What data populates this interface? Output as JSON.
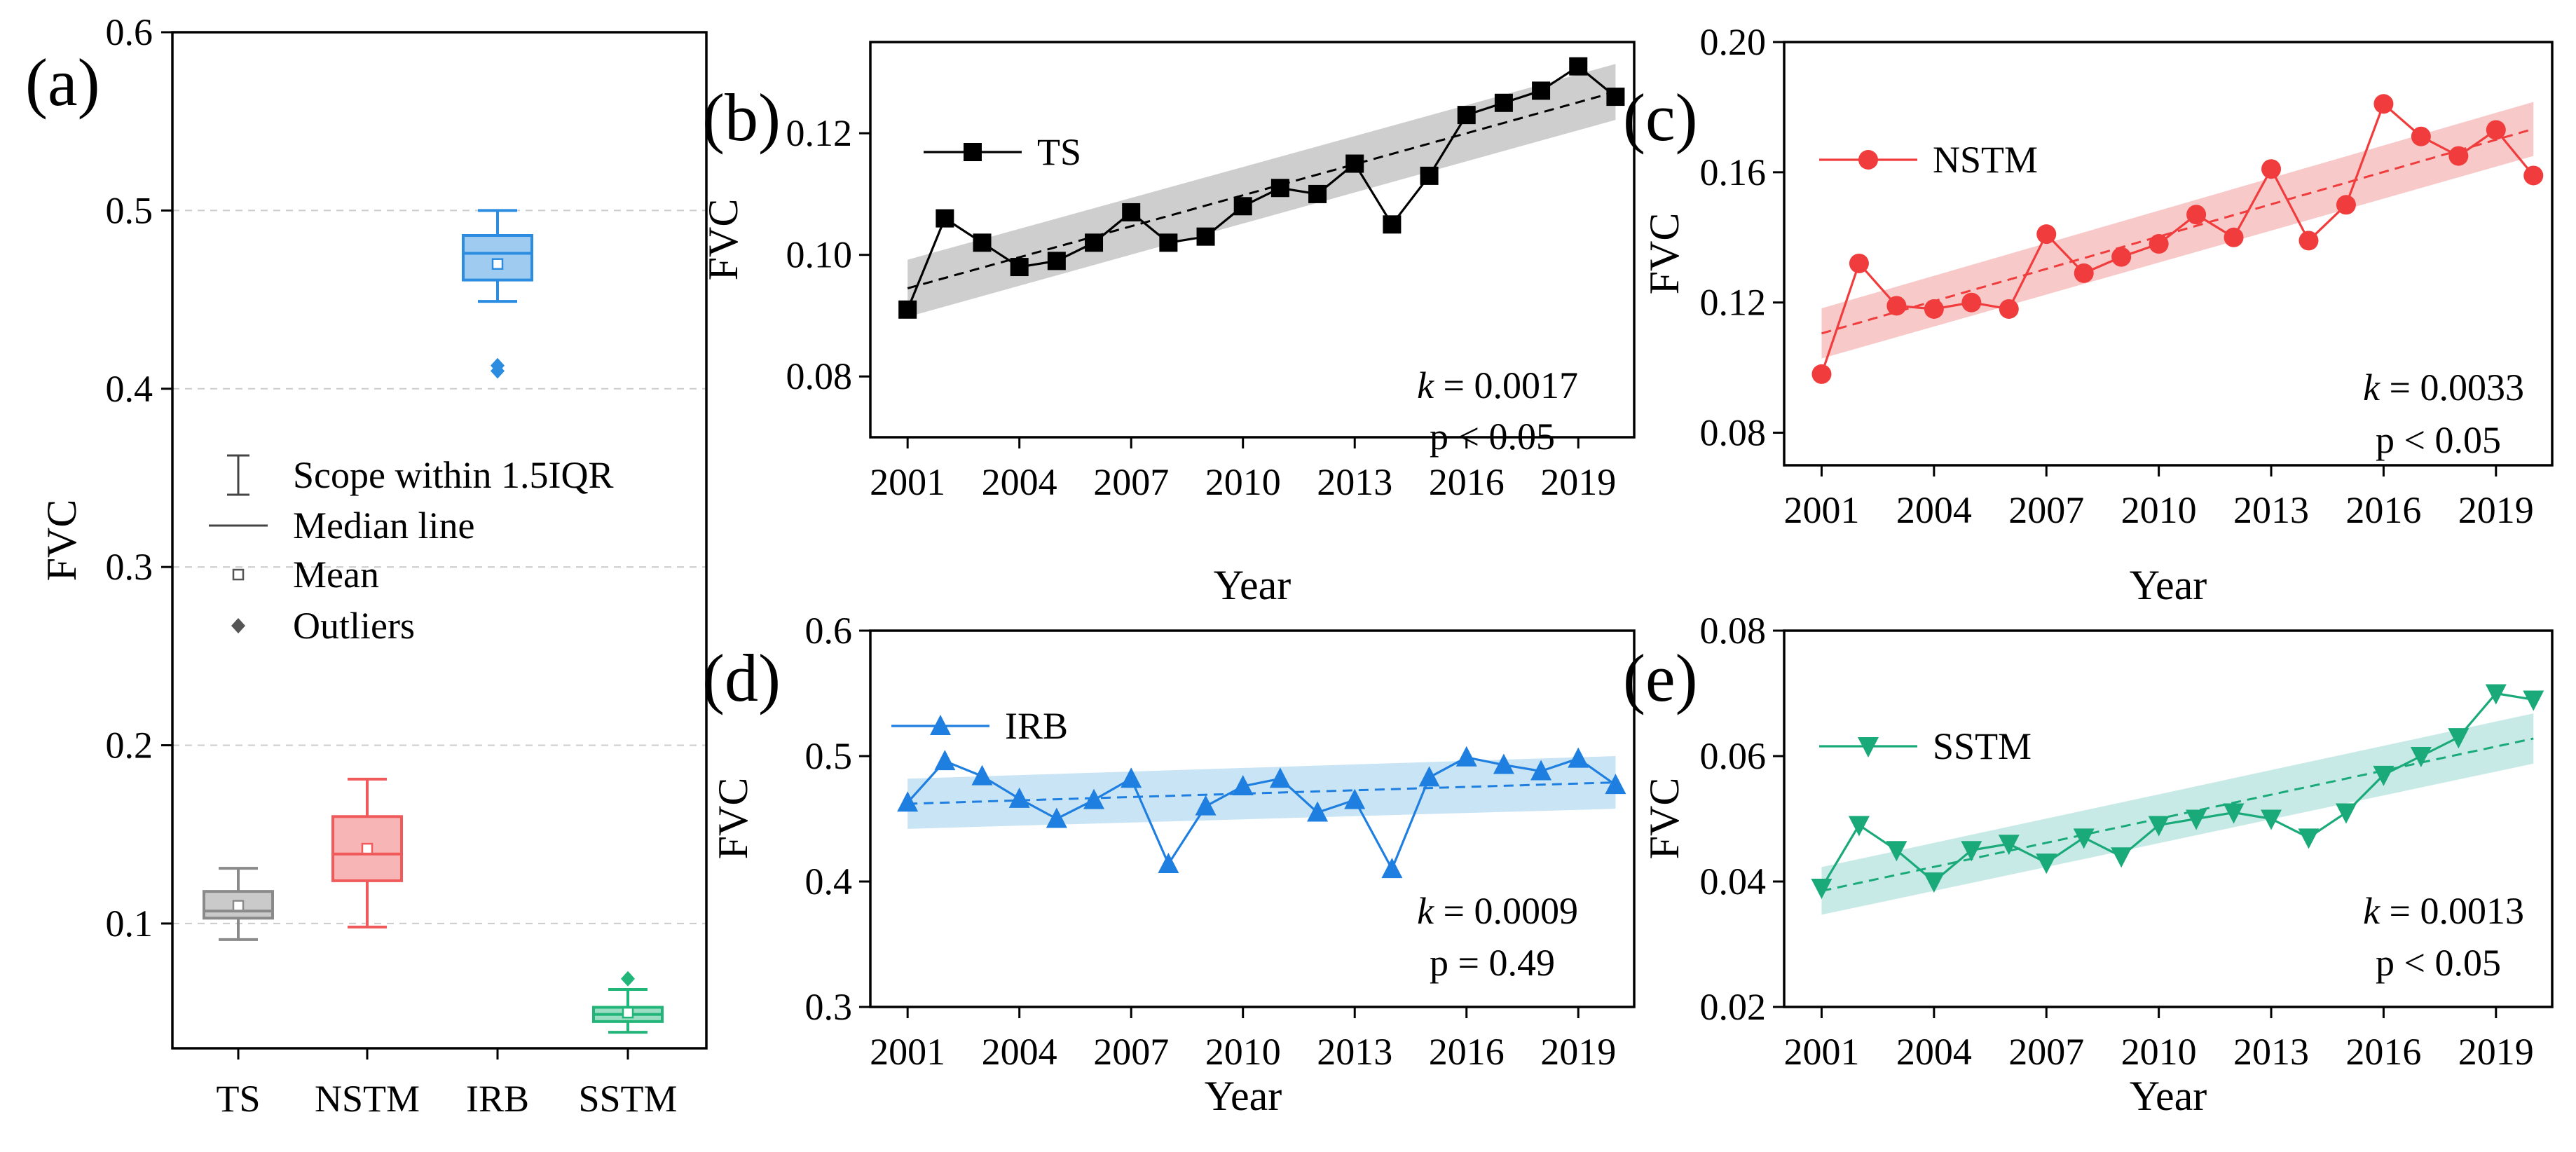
{
  "chart_data": [
    {
      "panel": "(a)",
      "type": "box",
      "categories": [
        "TS",
        "NSTM",
        "IRB",
        "SSTM"
      ],
      "ylabel": "FVC",
      "ylim": [
        0.03,
        0.6
      ],
      "yticks": [
        0.1,
        0.2,
        0.3,
        0.4,
        0.5,
        0.6
      ],
      "grid": true,
      "colors": [
        "#8a8a8a",
        "#f05a5a",
        "#2b8ce0",
        "#21b57a"
      ],
      "boxes": [
        {
          "whisker_low": 0.091,
          "q1": 0.103,
          "median": 0.107,
          "q3": 0.118,
          "whisker_high": 0.131,
          "mean": 0.11,
          "outliers": []
        },
        {
          "whisker_low": 0.098,
          "q1": 0.124,
          "median": 0.139,
          "q3": 0.16,
          "whisker_high": 0.181,
          "mean": 0.142,
          "outliers": []
        },
        {
          "whisker_low": 0.449,
          "q1": 0.461,
          "median": 0.476,
          "q3": 0.486,
          "whisker_high": 0.5,
          "mean": 0.47,
          "outliers": [
            0.41,
            0.413
          ]
        },
        {
          "whisker_low": 0.039,
          "q1": 0.045,
          "median": 0.049,
          "q3": 0.053,
          "whisker_high": 0.063,
          "mean": 0.05,
          "outliers": [
            0.069
          ]
        }
      ],
      "legend": [
        "Scope within 1.5IQR",
        "Median line",
        "Mean",
        "Outliers"
      ]
    },
    {
      "panel": "(b)",
      "type": "line",
      "series_name": "TS",
      "color": "#000000",
      "band_color": "#bdbdbd",
      "marker": "square",
      "x": [
        2001,
        2002,
        2003,
        2004,
        2005,
        2006,
        2007,
        2008,
        2009,
        2010,
        2011,
        2012,
        2013,
        2014,
        2015,
        2016,
        2017,
        2018,
        2019,
        2020
      ],
      "y": [
        0.091,
        0.106,
        0.102,
        0.098,
        0.099,
        0.102,
        0.107,
        0.102,
        0.103,
        0.108,
        0.111,
        0.11,
        0.115,
        0.105,
        0.113,
        0.123,
        0.125,
        0.127,
        0.131,
        0.126
      ],
      "fit": {
        "y_start": 0.0945,
        "y_end": 0.1268,
        "band_start": [
          0.0898,
          0.0992
        ],
        "band_end": [
          0.1222,
          0.1314
        ]
      },
      "xlabel": "Year",
      "ylabel": "FVC",
      "xlim": [
        2000,
        2020.5
      ],
      "ylim": [
        0.07,
        0.135
      ],
      "xticks": [
        2001,
        2004,
        2007,
        2010,
        2013,
        2016,
        2019
      ],
      "yticks": [
        0.08,
        0.1,
        0.12
      ],
      "ytick_labels": [
        "0.08",
        "0.10",
        "0.12"
      ],
      "annot_k": " = 0.0017",
      "annot_p": "p < 0.05"
    },
    {
      "panel": "(c)",
      "type": "line",
      "series_name": "NSTM",
      "color": "#f03c3c",
      "band_color": "#f5b7b7",
      "marker": "circle",
      "x": [
        2001,
        2002,
        2003,
        2004,
        2005,
        2006,
        2007,
        2008,
        2009,
        2010,
        2011,
        2012,
        2013,
        2014,
        2015,
        2016,
        2017,
        2018,
        2019,
        2020
      ],
      "y": [
        0.098,
        0.132,
        0.119,
        0.118,
        0.12,
        0.118,
        0.141,
        0.129,
        0.134,
        0.138,
        0.147,
        0.14,
        0.161,
        0.139,
        0.15,
        0.181,
        0.171,
        0.165,
        0.173,
        0.159
      ],
      "fit": {
        "y_start": 0.1105,
        "y_end": 0.1733,
        "band_start": [
          0.1028,
          0.1182
        ],
        "band_end": [
          0.165,
          0.1816
        ]
      },
      "xlabel": "Year",
      "ylabel": "FVC",
      "xlim": [
        2000,
        2020.5
      ],
      "ylim": [
        0.07,
        0.2
      ],
      "xticks": [
        2001,
        2004,
        2007,
        2010,
        2013,
        2016,
        2019
      ],
      "yticks": [
        0.08,
        0.12,
        0.16,
        0.2
      ],
      "ytick_labels": [
        "0.08",
        "0.12",
        "0.16",
        "0.20"
      ],
      "annot_k": " = 0.0033",
      "annot_p": "p < 0.05"
    },
    {
      "panel": "(d)",
      "type": "line",
      "series_name": "IRB",
      "color": "#1f7fe0",
      "band_color": "#b7dbf0",
      "marker": "triangle-up",
      "x": [
        2001,
        2002,
        2003,
        2004,
        2005,
        2006,
        2007,
        2008,
        2009,
        2010,
        2011,
        2012,
        2013,
        2014,
        2015,
        2016,
        2017,
        2018,
        2019,
        2020
      ],
      "y": [
        0.463,
        0.496,
        0.484,
        0.466,
        0.45,
        0.465,
        0.482,
        0.414,
        0.46,
        0.476,
        0.482,
        0.455,
        0.465,
        0.41,
        0.483,
        0.499,
        0.493,
        0.488,
        0.498,
        0.477
      ],
      "fit": {
        "y_start": 0.462,
        "y_end": 0.479,
        "band_start": [
          0.442,
          0.482
        ],
        "band_end": [
          0.458,
          0.5
        ]
      },
      "xlabel": "Year",
      "ylabel": "FVC",
      "xlim": [
        2000,
        2020.5
      ],
      "ylim": [
        0.3,
        0.6
      ],
      "xticks": [
        2001,
        2004,
        2007,
        2010,
        2013,
        2016,
        2019
      ],
      "yticks": [
        0.3,
        0.4,
        0.5,
        0.6
      ],
      "ytick_labels": [
        "0.3",
        "0.4",
        "0.5",
        "0.6"
      ],
      "annot_k": " = 0.0009",
      "annot_p": "p = 0.49"
    },
    {
      "panel": "(e)",
      "type": "line",
      "series_name": "SSTM",
      "color": "#1aaa7a",
      "band_color": "#b5e3de",
      "marker": "triangle-down",
      "x": [
        2001,
        2002,
        2003,
        2004,
        2005,
        2006,
        2007,
        2008,
        2009,
        2010,
        2011,
        2012,
        2013,
        2014,
        2015,
        2016,
        2017,
        2018,
        2019,
        2020
      ],
      "y": [
        0.039,
        0.049,
        0.045,
        0.04,
        0.045,
        0.046,
        0.043,
        0.047,
        0.044,
        0.049,
        0.05,
        0.051,
        0.05,
        0.047,
        0.051,
        0.057,
        0.06,
        0.063,
        0.07,
        0.069
      ],
      "fit": {
        "y_start": 0.0385,
        "y_end": 0.0628,
        "band_start": [
          0.0347,
          0.0423
        ],
        "band_end": [
          0.0588,
          0.0668
        ]
      },
      "xlabel": "Year",
      "ylabel": "FVC",
      "xlim": [
        2000,
        2020.5
      ],
      "ylim": [
        0.02,
        0.08
      ],
      "xticks": [
        2001,
        2004,
        2007,
        2010,
        2013,
        2016,
        2019
      ],
      "yticks": [
        0.02,
        0.04,
        0.06,
        0.08
      ],
      "ytick_labels": [
        "0.02",
        "0.04",
        "0.06",
        "0.08"
      ],
      "annot_k": " = 0.0013",
      "annot_p": "p < 0.05"
    }
  ]
}
